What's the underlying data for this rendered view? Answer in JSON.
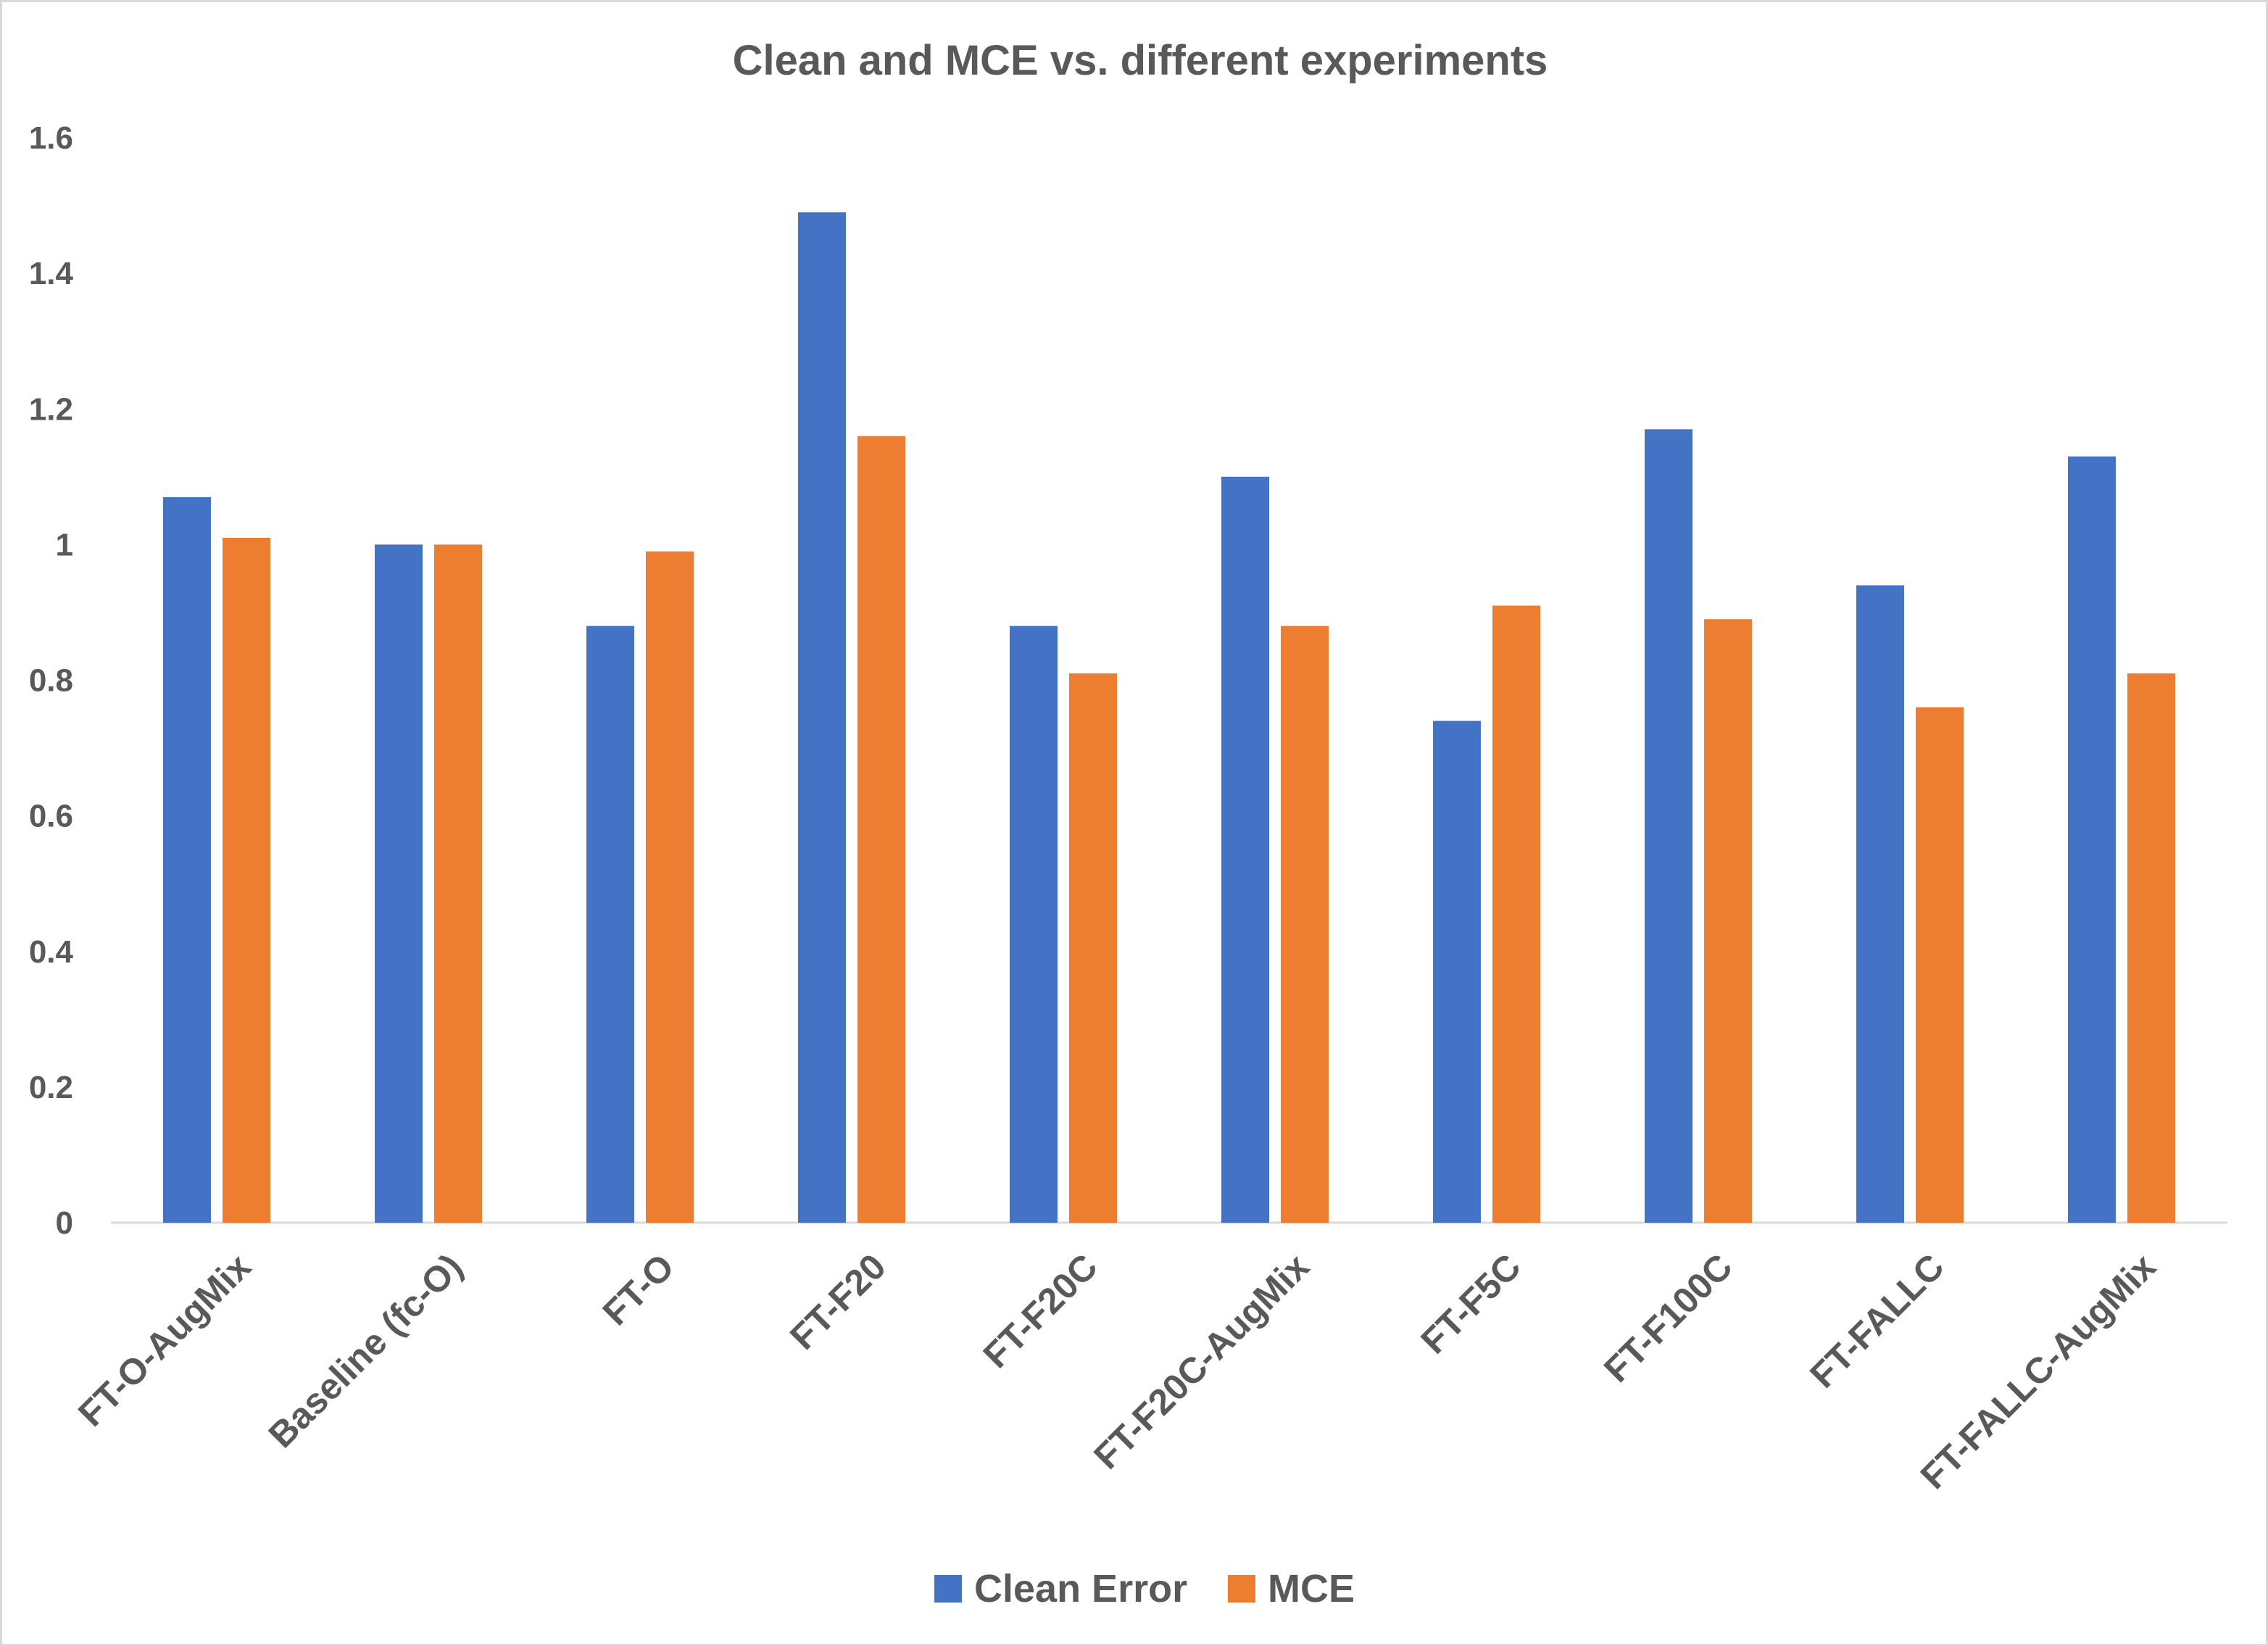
{
  "chart_data": {
    "type": "bar",
    "title": "Clean and MCE vs. different experiments",
    "xlabel": "",
    "ylabel": "",
    "ylim": [
      0,
      1.6
    ],
    "yticks": [
      "0",
      "0.2",
      "0.4",
      "0.6",
      "0.8",
      "1",
      "1.2",
      "1.4",
      "1.6"
    ],
    "grid": false,
    "legend_position": "bottom",
    "categories": [
      "FT-O-AugMix",
      "Baseline (fc-O)",
      "FT-O",
      "FT-F20",
      "FT-F20C",
      "FT-F20C-AugMix",
      "FT-F5C",
      "FT-F100C",
      "FT-FALLC",
      "FT-FALLC-AugMix"
    ],
    "series": [
      {
        "name": "Clean Error",
        "color": "#4472C4",
        "values": [
          1.07,
          1.0,
          0.88,
          1.49,
          0.88,
          1.1,
          0.74,
          1.17,
          0.94,
          1.13
        ]
      },
      {
        "name": "MCE",
        "color": "#ED7D31",
        "values": [
          1.01,
          1.0,
          0.99,
          1.16,
          0.81,
          0.88,
          0.91,
          0.89,
          0.76,
          0.81
        ]
      }
    ]
  }
}
